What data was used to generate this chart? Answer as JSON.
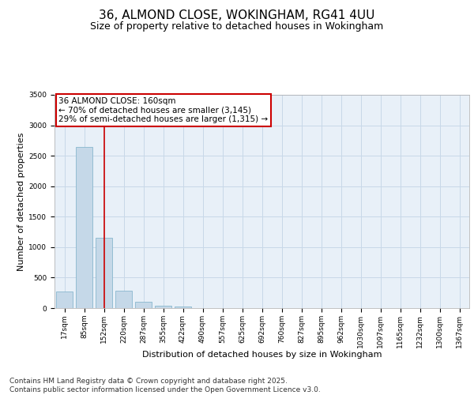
{
  "title_line1": "36, ALMOND CLOSE, WOKINGHAM, RG41 4UU",
  "title_line2": "Size of property relative to detached houses in Wokingham",
  "xlabel": "Distribution of detached houses by size in Wokingham",
  "ylabel": "Number of detached properties",
  "categories": [
    "17sqm",
    "85sqm",
    "152sqm",
    "220sqm",
    "287sqm",
    "355sqm",
    "422sqm",
    "490sqm",
    "557sqm",
    "625sqm",
    "692sqm",
    "760sqm",
    "827sqm",
    "895sqm",
    "962sqm",
    "1030sqm",
    "1097sqm",
    "1165sqm",
    "1232sqm",
    "1300sqm",
    "1367sqm"
  ],
  "values": [
    270,
    2650,
    1150,
    280,
    100,
    40,
    20,
    0,
    0,
    0,
    0,
    0,
    0,
    0,
    0,
    0,
    0,
    0,
    0,
    0,
    0
  ],
  "bar_color": "#c5d8e8",
  "bar_edge_color": "#7aaec8",
  "grid_color": "#c8d8e8",
  "background_color": "#e8f0f8",
  "annotation_text": "36 ALMOND CLOSE: 160sqm\n← 70% of detached houses are smaller (3,145)\n29% of semi-detached houses are larger (1,315) →",
  "annotation_box_color": "#ffffff",
  "annotation_border_color": "#cc0000",
  "vline_color": "#cc0000",
  "vline_x_index": 2,
  "ylim": [
    0,
    3500
  ],
  "yticks": [
    0,
    500,
    1000,
    1500,
    2000,
    2500,
    3000,
    3500
  ],
  "footer_line1": "Contains HM Land Registry data © Crown copyright and database right 2025.",
  "footer_line2": "Contains public sector information licensed under the Open Government Licence v3.0.",
  "title_fontsize": 11,
  "subtitle_fontsize": 9,
  "xlabel_fontsize": 8,
  "ylabel_fontsize": 8,
  "tick_fontsize": 6.5,
  "annotation_fontsize": 7.5,
  "footer_fontsize": 6.5
}
